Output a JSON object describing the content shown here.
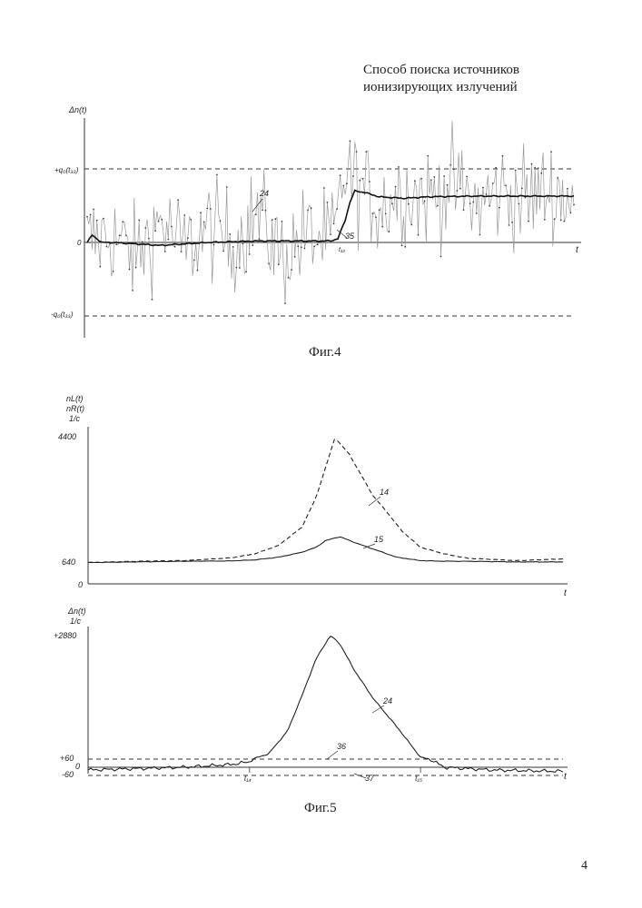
{
  "page": {
    "title_line1": "Способ поиска источников",
    "title_line2": "ионизирующих излучений",
    "page_number": "4"
  },
  "figures": {
    "fig4_caption": "Фиг.4",
    "fig5_caption": "Фиг.5"
  },
  "chart_data": [
    {
      "id": "fig4",
      "type": "line",
      "ylabel": "Δn(t)",
      "xlabel": "t",
      "y_tick_labels": [
        "+q₀(t₃₃)",
        "0",
        "-q₀(t₃₃)"
      ],
      "y_tick_values": [
        1,
        0,
        -1
      ],
      "ylim": [
        -1.3,
        2.0
      ],
      "threshold_lines": [
        1,
        -1
      ],
      "markers": [
        {
          "label": "t₁₃",
          "x": 0.515
        }
      ],
      "annotations": [
        "24",
        "35"
      ],
      "series": [
        {
          "name": "24",
          "style": "noisy-gray",
          "description": "raw Δn(t) signal",
          "x": [
            0.0,
            0.05,
            0.1,
            0.15,
            0.2,
            0.25,
            0.3,
            0.35,
            0.4,
            0.45,
            0.5,
            0.515,
            0.53,
            0.55,
            0.6,
            0.65,
            0.7,
            0.75,
            0.8,
            0.85,
            0.9,
            0.95,
            1.0
          ],
          "values": [
            0.0,
            0.1,
            -0.2,
            0.3,
            -0.1,
            0.2,
            0.0,
            0.4,
            -0.2,
            0.1,
            0.0,
            0.3,
            1.0,
            0.8,
            0.5,
            0.7,
            0.6,
            0.8,
            0.5,
            0.7,
            0.6,
            0.7,
            0.6
          ]
        },
        {
          "name": "24",
          "style": "smoothed-bold",
          "description": "smoothed Δn(t)",
          "x": [
            0.0,
            0.01,
            0.02,
            0.03,
            0.05,
            0.1,
            0.15,
            0.2,
            0.25,
            0.3,
            0.35,
            0.4,
            0.45,
            0.5,
            0.515,
            0.53,
            0.54,
            0.55,
            0.57,
            0.6,
            0.65,
            0.7,
            0.8,
            0.9,
            1.0
          ],
          "values": [
            0.0,
            0.1,
            0.05,
            0.0,
            0.0,
            -0.02,
            -0.04,
            -0.02,
            0.0,
            0.01,
            0.02,
            0.02,
            0.02,
            0.02,
            0.05,
            0.3,
            0.55,
            0.7,
            0.68,
            0.62,
            0.6,
            0.62,
            0.63,
            0.63,
            0.63
          ]
        }
      ]
    },
    {
      "id": "fig5-top",
      "type": "line",
      "ylabel_lines": [
        "nL(t)",
        "nR(t)",
        "1/c"
      ],
      "xlabel": "t",
      "y_tick_labels": [
        "4400",
        "640",
        "0"
      ],
      "y_tick_values": [
        4400,
        640,
        0
      ],
      "ylim": [
        0,
        4600
      ],
      "annotations": [
        "14",
        "15"
      ],
      "series": [
        {
          "name": "14",
          "style": "dashed",
          "x": [
            0.0,
            0.1,
            0.2,
            0.3,
            0.35,
            0.4,
            0.45,
            0.48,
            0.5,
            0.52,
            0.55,
            0.6,
            0.63,
            0.66,
            0.7,
            0.75,
            0.8,
            0.9,
            1.0
          ],
          "values": [
            640,
            680,
            700,
            780,
            900,
            1150,
            1700,
            2600,
            3500,
            4400,
            3900,
            2650,
            2150,
            1600,
            1100,
            900,
            770,
            700,
            750
          ]
        },
        {
          "name": "15",
          "style": "solid",
          "x": [
            0.0,
            0.1,
            0.2,
            0.3,
            0.35,
            0.4,
            0.45,
            0.48,
            0.5,
            0.53,
            0.56,
            0.6,
            0.65,
            0.7,
            0.75,
            0.8,
            0.9,
            1.0
          ],
          "values": [
            640,
            660,
            680,
            690,
            720,
            800,
            950,
            1100,
            1300,
            1420,
            1250,
            1050,
            800,
            700,
            680,
            680,
            660,
            660
          ]
        }
      ]
    },
    {
      "id": "fig5-bottom",
      "type": "line",
      "ylabel_lines": [
        "Δn(t)",
        "1/c"
      ],
      "xlabel": "t",
      "y_tick_labels": [
        "+2880",
        "+60",
        "0",
        "-60"
      ],
      "y_tick_values": [
        2880,
        60,
        0,
        -60
      ],
      "ylim": [
        -150,
        3100
      ],
      "threshold_lines": [
        60,
        -60
      ],
      "x_markers": [
        {
          "label": "t₁₄",
          "x": 0.34
        },
        {
          "label": "t₁₅",
          "x": 0.7
        }
      ],
      "annotations": [
        "24",
        "36",
        "37"
      ],
      "series": [
        {
          "name": "24",
          "style": "solid",
          "x": [
            0.0,
            0.1,
            0.2,
            0.3,
            0.34,
            0.38,
            0.42,
            0.45,
            0.48,
            0.51,
            0.53,
            0.56,
            0.6,
            0.65,
            0.7,
            0.75,
            0.85,
            1.0
          ],
          "values": [
            -20,
            -10,
            0,
            20,
            40,
            180,
            700,
            1500,
            2350,
            2880,
            2700,
            2100,
            1450,
            800,
            100,
            0,
            -20,
            -30
          ]
        }
      ]
    }
  ]
}
